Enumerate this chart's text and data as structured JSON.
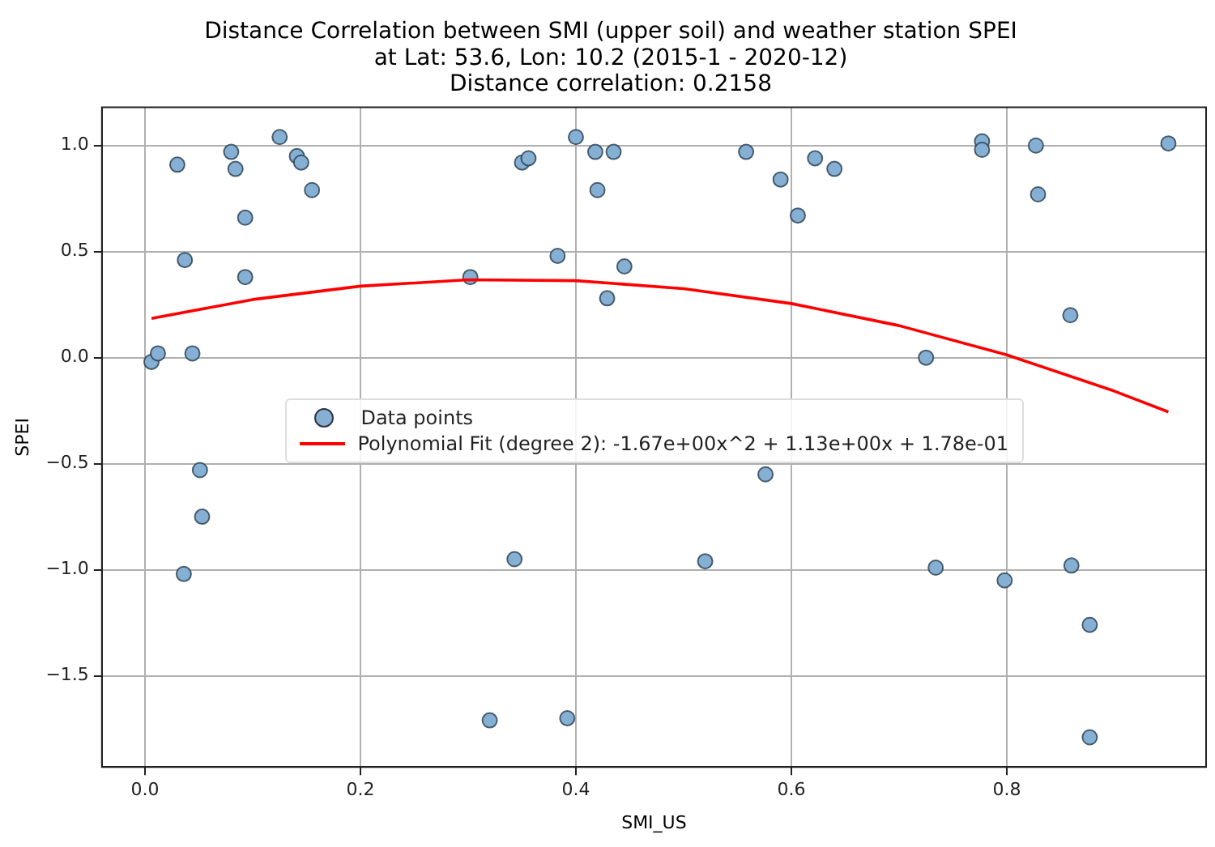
{
  "chart_data": {
    "type": "scatter",
    "title": "Distance Correlation between SMI (upper soil) and weather station SPEI\nat Lat: 53.6, Lon: 10.2 (2015-1 - 2020-12)\nDistance correlation: 0.2158",
    "xlabel": "SMI_US",
    "ylabel": "SPEI",
    "xlim": [
      -0.04,
      0.985
    ],
    "ylim": [
      -1.93,
      1.18
    ],
    "xticks": [
      {
        "value": 0,
        "label": "0.0"
      },
      {
        "value": 0.2,
        "label": "0.2"
      },
      {
        "value": 0.4,
        "label": "0.4"
      },
      {
        "value": 0.6,
        "label": "0.6"
      },
      {
        "value": 0.8,
        "label": "0.8"
      }
    ],
    "yticks": [
      {
        "value": -1.5,
        "label": "−1.5"
      },
      {
        "value": -1,
        "label": "−1.0"
      },
      {
        "value": -0.5,
        "label": "−0.5"
      },
      {
        "value": 0,
        "label": "0.0"
      },
      {
        "value": 0.5,
        "label": "0.5"
      },
      {
        "value": 1,
        "label": "1.0"
      }
    ],
    "grid": true,
    "legend": "center",
    "marker": "circle",
    "series": [
      {
        "name": "Data points",
        "type": "scatter",
        "color": "#85b0d4",
        "x": [
          0.006,
          0.012,
          0.03,
          0.037,
          0.044,
          0.051,
          0.053,
          0.036,
          0.08,
          0.084,
          0.093,
          0.093,
          0.125,
          0.141,
          0.145,
          0.155,
          0.302,
          0.35,
          0.356,
          0.383,
          0.4,
          0.418,
          0.42,
          0.435,
          0.429,
          0.445,
          0.32,
          0.343,
          0.392,
          0.52,
          0.558,
          0.576,
          0.59,
          0.606,
          0.622,
          0.64,
          0.725,
          0.734,
          0.777,
          0.777,
          0.827,
          0.829,
          0.798,
          0.859,
          0.86,
          0.877,
          0.877,
          0.95
        ],
        "values": [
          -0.02,
          0.02,
          0.91,
          0.46,
          0.02,
          -0.53,
          -0.75,
          -1.02,
          0.97,
          0.89,
          0.66,
          0.38,
          1.04,
          0.95,
          0.92,
          0.79,
          0.38,
          0.92,
          0.94,
          0.48,
          1.04,
          0.97,
          0.79,
          0.97,
          0.28,
          0.43,
          -1.71,
          -0.95,
          -1.7,
          -0.96,
          0.97,
          -0.55,
          0.84,
          0.67,
          0.94,
          0.89,
          0,
          -0.99,
          1.02,
          0.98,
          1,
          0.77,
          -1.05,
          0.2,
          -0.98,
          -1.26,
          -1.79,
          1.01
        ]
      },
      {
        "name": "Polynomial Fit (degree 2): -1.67e+00x^2 + 1.13e+00x + 1.78e-01",
        "type": "line",
        "color": "#ff0000",
        "marker": "none",
        "line_style": "solid",
        "x": [
          0.006,
          0.1,
          0.2,
          0.3,
          0.4,
          0.5,
          0.6,
          0.7,
          0.8,
          0.9,
          0.95
        ],
        "values": [
          0.185,
          0.274,
          0.337,
          0.367,
          0.363,
          0.325,
          0.255,
          0.151,
          0.013,
          -0.158,
          -0.256
        ]
      }
    ]
  }
}
